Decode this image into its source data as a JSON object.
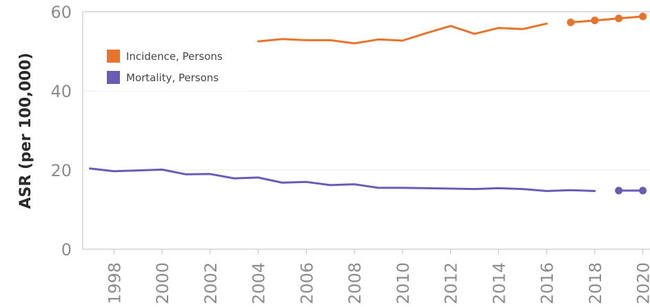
{
  "chart_data": {
    "type": "line",
    "ylabel": "ASR (per 100,000)",
    "xlabel": "",
    "ylim": [
      0,
      60
    ],
    "xlim": [
      1996.7,
      2020.3
    ],
    "yticks": [
      0,
      20,
      40,
      60
    ],
    "xticks": [
      1998,
      2000,
      2002,
      2004,
      2006,
      2008,
      2010,
      2012,
      2014,
      2016,
      2018,
      2020
    ],
    "grid": "horizontal",
    "legend_position": "top-left",
    "series": [
      {
        "name": "Incidence, Persons",
        "color": "#E8732A",
        "values": [
          {
            "x": 2004,
            "y": 52.5
          },
          {
            "x": 2005,
            "y": 53.1
          },
          {
            "x": 2006,
            "y": 52.8
          },
          {
            "x": 2007,
            "y": 52.8
          },
          {
            "x": 2008,
            "y": 52.0
          },
          {
            "x": 2009,
            "y": 53.0
          },
          {
            "x": 2010,
            "y": 52.7
          },
          {
            "x": 2011,
            "y": 54.6
          },
          {
            "x": 2012,
            "y": 56.4
          },
          {
            "x": 2013,
            "y": 54.4
          },
          {
            "x": 2014,
            "y": 55.9
          },
          {
            "x": 2015,
            "y": 55.6
          },
          {
            "x": 2016,
            "y": 57.0
          }
        ],
        "points": [
          {
            "x": 2017,
            "y": 57.3
          },
          {
            "x": 2018,
            "y": 57.8
          },
          {
            "x": 2019,
            "y": 58.3
          },
          {
            "x": 2020,
            "y": 58.8
          }
        ]
      },
      {
        "name": "Mortality, Persons",
        "color": "#6B5BB5",
        "values": [
          {
            "x": 1997,
            "y": 20.4
          },
          {
            "x": 1998,
            "y": 19.7
          },
          {
            "x": 1999,
            "y": 19.9
          },
          {
            "x": 2000,
            "y": 20.1
          },
          {
            "x": 2001,
            "y": 18.9
          },
          {
            "x": 2002,
            "y": 19.0
          },
          {
            "x": 2003,
            "y": 17.9
          },
          {
            "x": 2004,
            "y": 18.1
          },
          {
            "x": 2005,
            "y": 16.8
          },
          {
            "x": 2006,
            "y": 17.0
          },
          {
            "x": 2007,
            "y": 16.2
          },
          {
            "x": 2008,
            "y": 16.4
          },
          {
            "x": 2009,
            "y": 15.5
          },
          {
            "x": 2010,
            "y": 15.5
          },
          {
            "x": 2011,
            "y": 15.4
          },
          {
            "x": 2012,
            "y": 15.3
          },
          {
            "x": 2013,
            "y": 15.2
          },
          {
            "x": 2014,
            "y": 15.4
          },
          {
            "x": 2015,
            "y": 15.2
          },
          {
            "x": 2016,
            "y": 14.7
          },
          {
            "x": 2017,
            "y": 14.9
          },
          {
            "x": 2018,
            "y": 14.7
          }
        ],
        "points": [
          {
            "x": 2019,
            "y": 14.8
          },
          {
            "x": 2020,
            "y": 14.8
          }
        ]
      }
    ]
  }
}
